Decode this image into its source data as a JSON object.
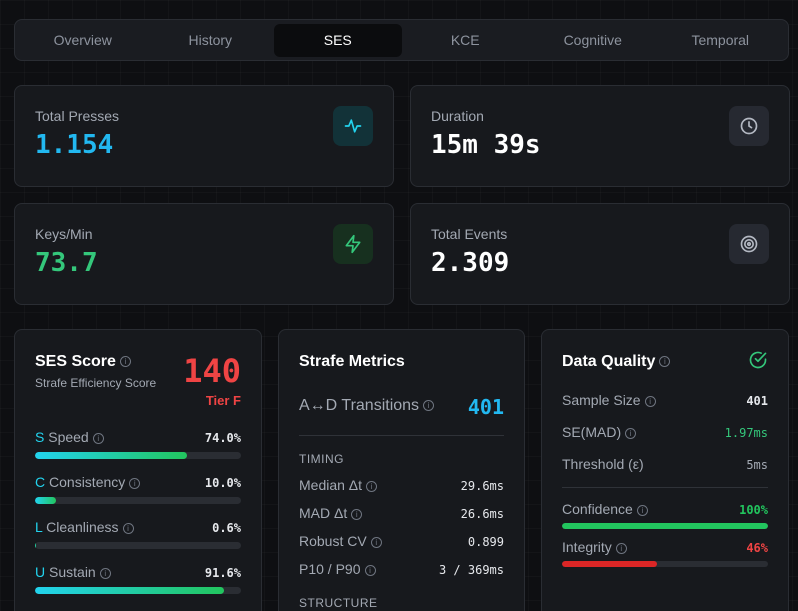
{
  "tabs": [
    {
      "label": "Overview"
    },
    {
      "label": "History"
    },
    {
      "label": "SES"
    },
    {
      "label": "KCE"
    },
    {
      "label": "Cognitive"
    },
    {
      "label": "Temporal"
    }
  ],
  "active_tab": "SES",
  "stats": {
    "total_presses": {
      "label": "Total Presses",
      "value": "1.154",
      "color": "#22b8f0",
      "icon": "activity-icon"
    },
    "duration": {
      "label": "Duration",
      "value": "15m 39s",
      "color": "#ffffff",
      "icon": "clock-icon"
    },
    "keys_min": {
      "label": "Keys/Min",
      "value": "73.7",
      "color": "#34c77b",
      "icon": "lightning-icon"
    },
    "total_events": {
      "label": "Total Events",
      "value": "2.309",
      "color": "#ffffff",
      "icon": "target-icon"
    }
  },
  "ses": {
    "title": "SES Score",
    "subtitle": "Strafe Efficiency Score",
    "score": "140",
    "tier": "Tier F",
    "score_color": "#ef4444",
    "metrics": [
      {
        "letter": "S",
        "label": "Speed",
        "value": "74.0%",
        "fraction": 0.74
      },
      {
        "letter": "C",
        "label": "Consistency",
        "value": "10.0%",
        "fraction": 0.1
      },
      {
        "letter": "L",
        "label": "Cleanliness",
        "value": "0.6%",
        "fraction": 0.006
      },
      {
        "letter": "U",
        "label": "Sustain",
        "value": "91.6%",
        "fraction": 0.916
      }
    ]
  },
  "strafe": {
    "title": "Strafe Metrics",
    "transitions_label": "A↔D Transitions",
    "transitions_value": "401",
    "timing_header": "TIMING",
    "timing": [
      {
        "label": "Median Δt",
        "value": "29.6ms"
      },
      {
        "label": "MAD Δt",
        "value": "26.6ms"
      },
      {
        "label": "Robust CV",
        "value": "0.899"
      },
      {
        "label": "P10 / P90",
        "value": "3 / 369ms"
      }
    ],
    "structure_header": "STRUCTURE"
  },
  "quality": {
    "title": "Data Quality",
    "status_icon": "check-circle-icon",
    "rows": [
      {
        "label": "Sample Size",
        "value": "401",
        "color": "#e6e8ec",
        "info": true
      },
      {
        "label": "SE(MAD)",
        "value": "1.97ms",
        "color": "#34c77b",
        "info": true
      },
      {
        "label": "Threshold (ε)",
        "value": "5ms",
        "color": "#a3a9b3",
        "info": false
      }
    ],
    "confidence": {
      "label": "Confidence",
      "value": "100%",
      "fraction": 1.0,
      "color": "#22c55e"
    },
    "integrity": {
      "label": "Integrity",
      "value": "46%",
      "fraction": 0.46,
      "color": "#dc2626"
    }
  }
}
